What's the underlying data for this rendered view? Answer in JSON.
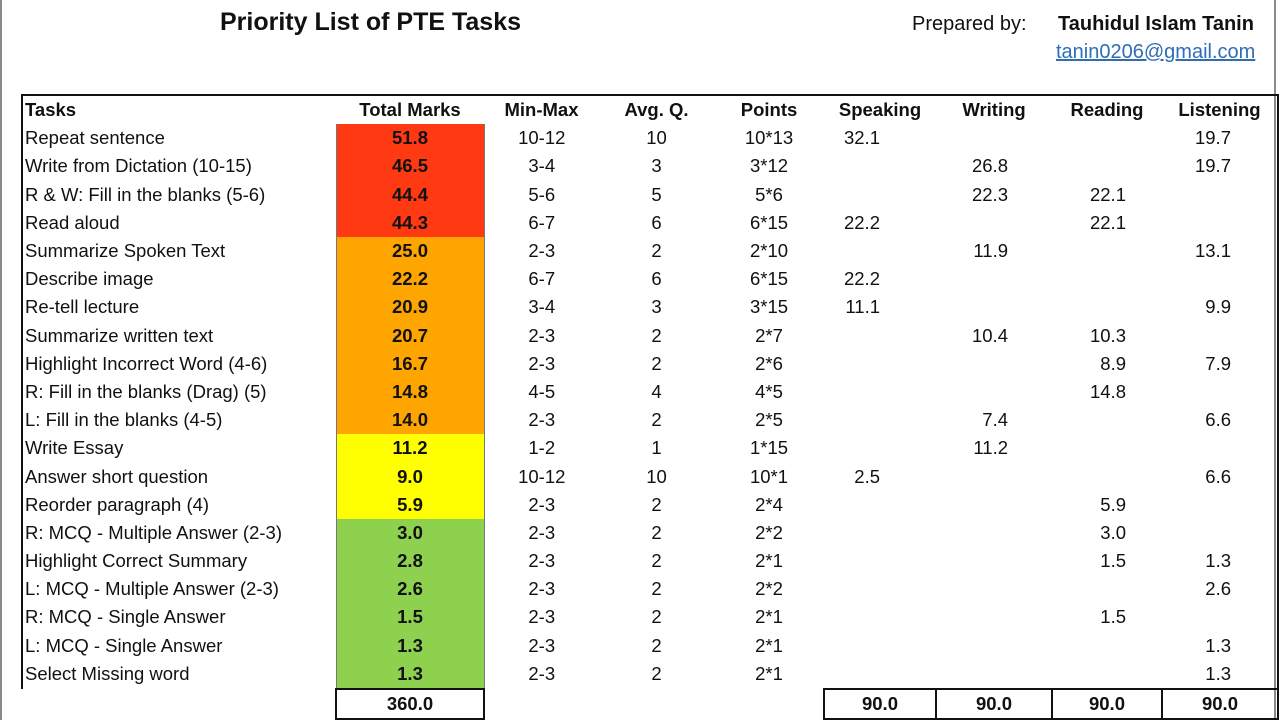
{
  "header": {
    "title": "Priority List of PTE Tasks",
    "prepared_label": "Prepared by:",
    "prepared_name": "Tauhidul Islam Tanin",
    "email": "tanin0206@gmail.com"
  },
  "colors": {
    "red": "#ff3a12",
    "orange": "#ffa500",
    "yellow": "#ffff00",
    "green": "#8ed14f"
  },
  "table": {
    "columns": [
      "Tasks",
      "Total Marks",
      "Min-Max",
      "Avg. Q.",
      "Points",
      "Speaking",
      "Writing",
      "Reading",
      "Listening"
    ],
    "rows": [
      {
        "task": "Repeat sentence",
        "total": "51.8",
        "minmax": "10-12",
        "avg": "10",
        "points": "10*13",
        "speaking": "32.1",
        "writing": "",
        "reading": "",
        "listening": "19.7",
        "band": "red"
      },
      {
        "task": "Write from Dictation (10-15)",
        "total": "46.5",
        "minmax": "3-4",
        "avg": "3",
        "points": "3*12",
        "speaking": "",
        "writing": "26.8",
        "reading": "",
        "listening": "19.7",
        "band": "red"
      },
      {
        "task": "R & W: Fill in the blanks (5-6)",
        "total": "44.4",
        "minmax": "5-6",
        "avg": "5",
        "points": "5*6",
        "speaking": "",
        "writing": "22.3",
        "reading": "22.1",
        "listening": "",
        "band": "red"
      },
      {
        "task": "Read aloud",
        "total": "44.3",
        "minmax": "6-7",
        "avg": "6",
        "points": "6*15",
        "speaking": "22.2",
        "writing": "",
        "reading": "22.1",
        "listening": "",
        "band": "red"
      },
      {
        "task": "Summarize Spoken Text",
        "total": "25.0",
        "minmax": "2-3",
        "avg": "2",
        "points": "2*10",
        "speaking": "",
        "writing": "11.9",
        "reading": "",
        "listening": "13.1",
        "band": "orange"
      },
      {
        "task": "Describe image",
        "total": "22.2",
        "minmax": "6-7",
        "avg": "6",
        "points": "6*15",
        "speaking": "22.2",
        "writing": "",
        "reading": "",
        "listening": "",
        "band": "orange"
      },
      {
        "task": "Re-tell lecture",
        "total": "20.9",
        "minmax": "3-4",
        "avg": "3",
        "points": "3*15",
        "speaking": "11.1",
        "writing": "",
        "reading": "",
        "listening": "9.9",
        "band": "orange"
      },
      {
        "task": "Summarize written text",
        "total": "20.7",
        "minmax": "2-3",
        "avg": "2",
        "points": "2*7",
        "speaking": "",
        "writing": "10.4",
        "reading": "10.3",
        "listening": "",
        "band": "orange"
      },
      {
        "task": "Highlight Incorrect Word (4-6)",
        "total": "16.7",
        "minmax": "2-3",
        "avg": "2",
        "points": "2*6",
        "speaking": "",
        "writing": "",
        "reading": "8.9",
        "listening": "7.9",
        "band": "orange"
      },
      {
        "task": "R: Fill in the blanks (Drag) (5)",
        "total": "14.8",
        "minmax": "4-5",
        "avg": "4",
        "points": "4*5",
        "speaking": "",
        "writing": "",
        "reading": "14.8",
        "listening": "",
        "band": "orange"
      },
      {
        "task": "L: Fill in the blanks (4-5)",
        "total": "14.0",
        "minmax": "2-3",
        "avg": "2",
        "points": "2*5",
        "speaking": "",
        "writing": "7.4",
        "reading": "",
        "listening": "6.6",
        "band": "orange"
      },
      {
        "task": "Write Essay",
        "total": "11.2",
        "minmax": "1-2",
        "avg": "1",
        "points": "1*15",
        "speaking": "",
        "writing": "11.2",
        "reading": "",
        "listening": "",
        "band": "yellow"
      },
      {
        "task": "Answer short question",
        "total": "9.0",
        "minmax": "10-12",
        "avg": "10",
        "points": "10*1",
        "speaking": "2.5",
        "writing": "",
        "reading": "",
        "listening": "6.6",
        "band": "yellow"
      },
      {
        "task": "Reorder paragraph (4)",
        "total": "5.9",
        "minmax": "2-3",
        "avg": "2",
        "points": "2*4",
        "speaking": "",
        "writing": "",
        "reading": "5.9",
        "listening": "",
        "band": "yellow"
      },
      {
        "task": "R: MCQ - Multiple Answer (2-3)",
        "total": "3.0",
        "minmax": "2-3",
        "avg": "2",
        "points": "2*2",
        "speaking": "",
        "writing": "",
        "reading": "3.0",
        "listening": "",
        "band": "green"
      },
      {
        "task": "Highlight Correct Summary",
        "total": "2.8",
        "minmax": "2-3",
        "avg": "2",
        "points": "2*1",
        "speaking": "",
        "writing": "",
        "reading": "1.5",
        "listening": "1.3",
        "band": "green"
      },
      {
        "task": "L: MCQ - Multiple Answer (2-3)",
        "total": "2.6",
        "minmax": "2-3",
        "avg": "2",
        "points": "2*2",
        "speaking": "",
        "writing": "",
        "reading": "",
        "listening": "2.6",
        "band": "green"
      },
      {
        "task": "R: MCQ - Single Answer",
        "total": "1.5",
        "minmax": "2-3",
        "avg": "2",
        "points": "2*1",
        "speaking": "",
        "writing": "",
        "reading": "1.5",
        "listening": "",
        "band": "green"
      },
      {
        "task": "L: MCQ - Single Answer",
        "total": "1.3",
        "minmax": "2-3",
        "avg": "2",
        "points": "2*1",
        "speaking": "",
        "writing": "",
        "reading": "",
        "listening": "1.3",
        "band": "green"
      },
      {
        "task": "Select Missing word",
        "total": "1.3",
        "minmax": "2-3",
        "avg": "2",
        "points": "2*1",
        "speaking": "",
        "writing": "",
        "reading": "",
        "listening": "1.3",
        "band": "green"
      }
    ],
    "totals": {
      "total": "360.0",
      "speaking": "90.0",
      "writing": "90.0",
      "reading": "90.0",
      "listening": "90.0"
    }
  }
}
